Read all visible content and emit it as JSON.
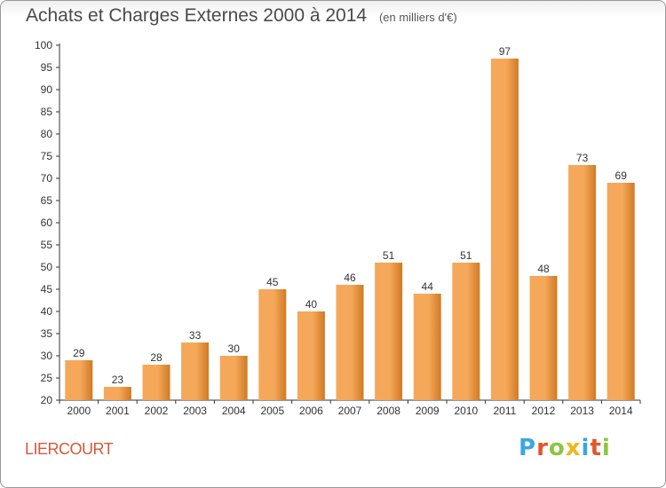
{
  "header": {
    "title": "Achats et Charges Externes 2000 à 2014",
    "subtitle": "(en milliers d'€)"
  },
  "footer": {
    "place": "LIERCOURT",
    "logo": "Proxiti",
    "logo_colors": [
      "#3aa7e0",
      "#e0572a",
      "#8cc63f",
      "#f2b61c",
      "#3aa7e0",
      "#e0572a",
      "#8cc63f"
    ]
  },
  "colors": {
    "bar_light": "#f5a85a",
    "bar_dark": "#d07a24",
    "axis": "#333333",
    "grid": "#cfcfcf"
  },
  "chart_data": {
    "type": "bar",
    "categories": [
      "2000",
      "2001",
      "2002",
      "2003",
      "2004",
      "2005",
      "2006",
      "2007",
      "2008",
      "2009",
      "2010",
      "2011",
      "2012",
      "2013",
      "2014"
    ],
    "values": [
      29,
      23,
      28,
      33,
      30,
      45,
      40,
      46,
      51,
      44,
      51,
      97,
      48,
      73,
      69
    ],
    "ylim": [
      20,
      100
    ],
    "yticks": [
      20,
      25,
      30,
      35,
      40,
      45,
      50,
      55,
      60,
      65,
      70,
      75,
      80,
      85,
      90,
      95,
      100
    ],
    "data_labels": true,
    "grid": false,
    "legend": "none"
  }
}
